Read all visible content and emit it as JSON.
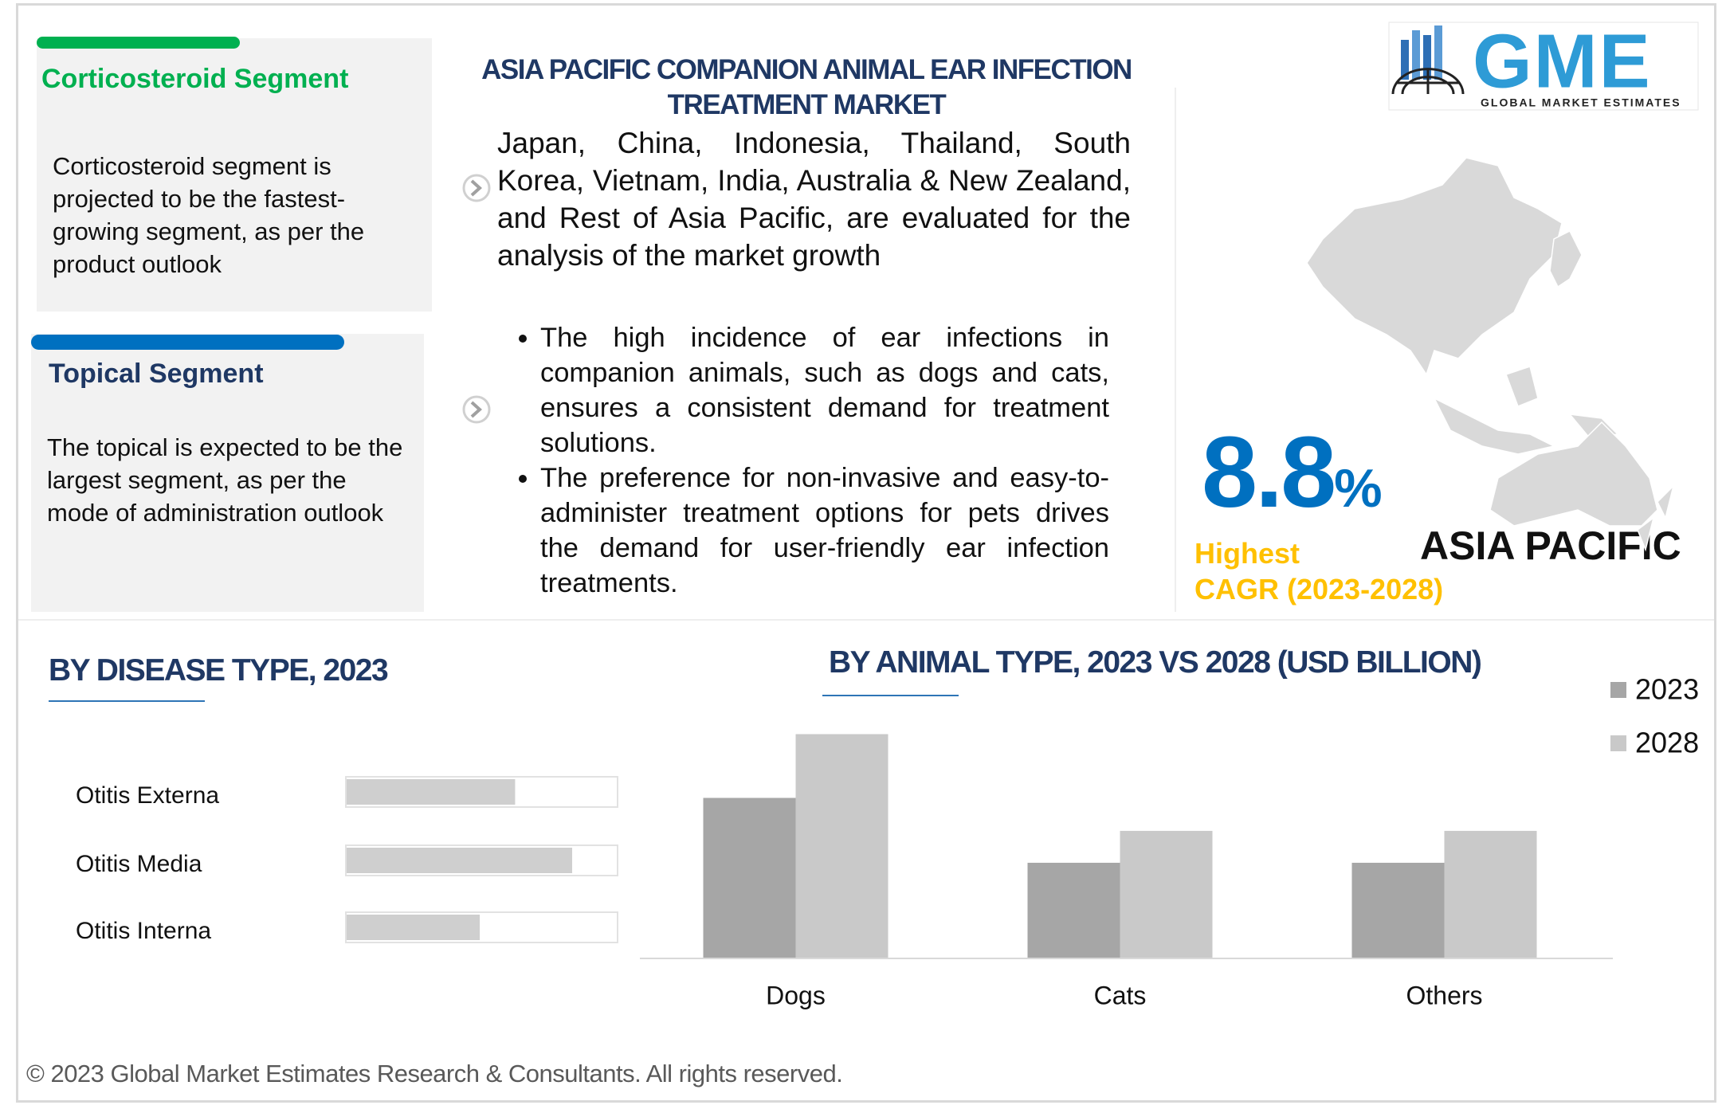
{
  "header": {
    "title": "ASIA PACIFIC COMPANION ANIMAL EAR INFECTION TREATMENT MARKET",
    "logo": "GME",
    "logo_subtitle": "GLOBAL MARKET ESTIMATES"
  },
  "segments": [
    {
      "title": "Corticosteroid  Segment",
      "text": "Corticosteroid  segment is projected to be the fastest-growing segment, as per the product outlook"
    },
    {
      "title": "Topical Segment",
      "text": "The topical is expected to be the largest segment, as per the mode of administration outlook"
    }
  ],
  "summary": "Japan, China, Indonesia, Thailand, South Korea, Vietnam, India, Australia & New Zealand, and Rest of Asia Pacific, are evaluated for the analysis of the market growth",
  "bullets": [
    "The high incidence of ear infections in companion animals, such as dogs and cats, ensures a consistent demand for treatment solutions.",
    "The preference for non-invasive and easy-to-administer treatment options for pets drives the demand for user-friendly ear infection treatments."
  ],
  "cagr": {
    "value": "8.8",
    "unit": "%",
    "label": "Highest",
    "period": "CAGR (2023-2028)",
    "region": "ASIA PACIFIC"
  },
  "footer": "© 2023 Global Market Estimates Research & Consultants. All rights reserved.",
  "chart_data": [
    {
      "type": "hbar",
      "title": "BY DISEASE TYPE, 2023",
      "categories": [
        "Otitis Externa",
        "Otitis Media",
        "Otitis Interna"
      ],
      "values": [
        62,
        83,
        49
      ],
      "color": "#cfcfcf",
      "xlim": [
        0,
        100
      ]
    },
    {
      "type": "bar",
      "title": "BY ANIMAL TYPE, 2023 VS 2028 (USD BILLION)",
      "categories": [
        "Dogs",
        "Cats",
        "Others"
      ],
      "series": [
        {
          "name": "2023",
          "color": "#a6a6a6",
          "values": [
            0.146,
            0.087,
            0.087
          ]
        },
        {
          "name": "2028",
          "color": "#c9c9c9",
          "values": [
            0.204,
            0.116,
            0.116
          ]
        }
      ],
      "ylim": [
        0,
        0.25
      ],
      "legend": "top-right"
    }
  ]
}
